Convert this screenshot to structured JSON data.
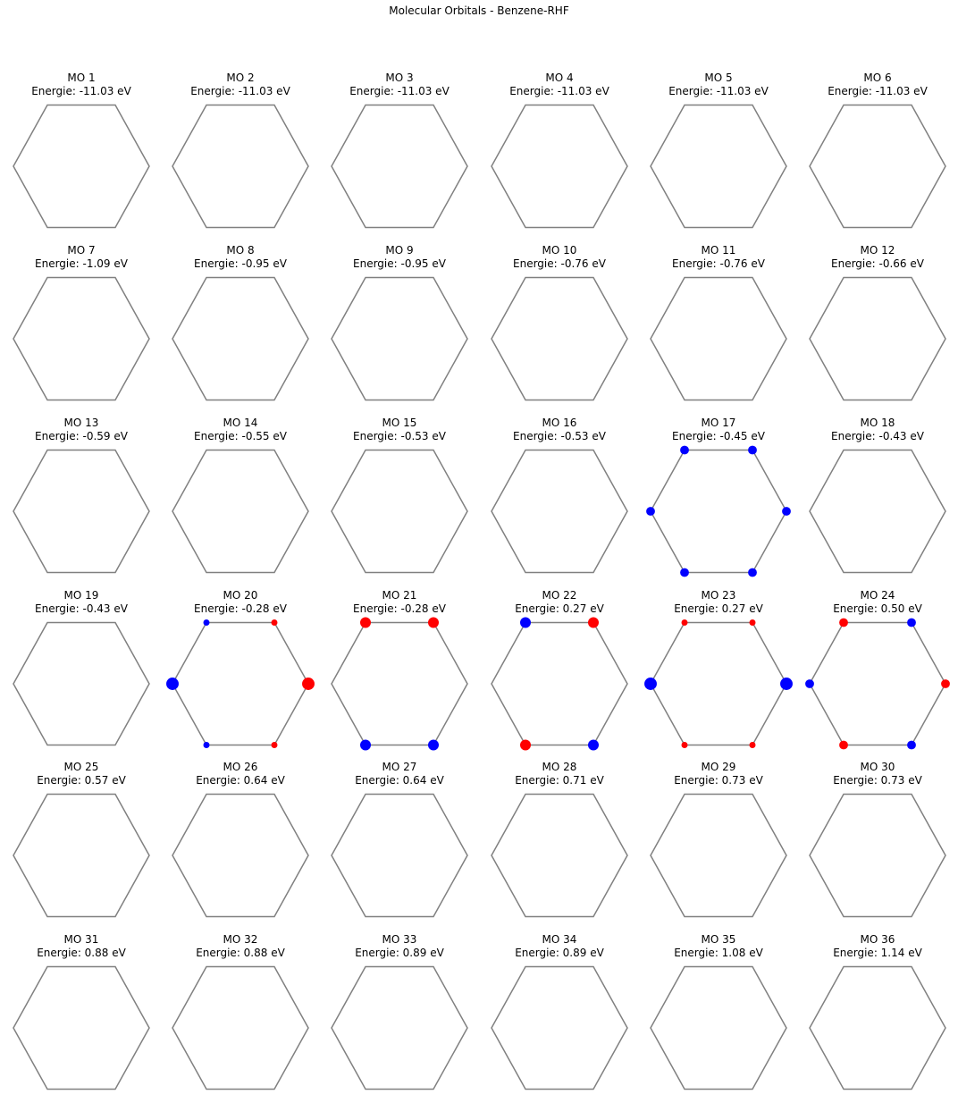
{
  "figure": {
    "title": "Molecular Orbitals - Benzene-RHF",
    "energy_prefix": "Energie: ",
    "energy_unit": " eV",
    "colors": {
      "ring": "#808080",
      "positive": "#ff0000",
      "negative": "#0000ff"
    }
  },
  "orbitals": [
    {
      "label": "MO 1",
      "energy": "-11.03"
    },
    {
      "label": "MO 2",
      "energy": "-11.03"
    },
    {
      "label": "MO 3",
      "energy": "-11.03"
    },
    {
      "label": "MO 4",
      "energy": "-11.03"
    },
    {
      "label": "MO 5",
      "energy": "-11.03"
    },
    {
      "label": "MO 6",
      "energy": "-11.03"
    },
    {
      "label": "MO 7",
      "energy": "-1.09"
    },
    {
      "label": "MO 8",
      "energy": "-0.95"
    },
    {
      "label": "MO 9",
      "energy": "-0.95"
    },
    {
      "label": "MO 10",
      "energy": "-0.76"
    },
    {
      "label": "MO 11",
      "energy": "-0.76"
    },
    {
      "label": "MO 12",
      "energy": "-0.66"
    },
    {
      "label": "MO 13",
      "energy": "-0.59"
    },
    {
      "label": "MO 14",
      "energy": "-0.55"
    },
    {
      "label": "MO 15",
      "energy": "-0.53"
    },
    {
      "label": "MO 16",
      "energy": "-0.53"
    },
    {
      "label": "MO 17",
      "energy": "-0.45",
      "coefficients": [
        -0.41,
        -0.41,
        -0.41,
        -0.41,
        -0.41,
        -0.41
      ]
    },
    {
      "label": "MO 18",
      "energy": "-0.43"
    },
    {
      "label": "MO 19",
      "energy": "-0.43"
    },
    {
      "label": "MO 20",
      "energy": "-0.28",
      "coefficients": [
        0.58,
        0.29,
        -0.29,
        -0.58,
        -0.29,
        0.29
      ]
    },
    {
      "label": "MO 21",
      "energy": "-0.28",
      "coefficients": [
        0,
        0.5,
        0.5,
        0,
        -0.5,
        -0.5
      ]
    },
    {
      "label": "MO 22",
      "energy": "0.27",
      "coefficients": [
        0,
        0.5,
        -0.5,
        0,
        0.5,
        -0.5
      ]
    },
    {
      "label": "MO 23",
      "energy": "0.27",
      "coefficients": [
        -0.58,
        0.29,
        0.29,
        -0.58,
        0.29,
        0.29
      ]
    },
    {
      "label": "MO 24",
      "energy": "0.50",
      "coefficients": [
        0.41,
        -0.41,
        0.41,
        -0.41,
        0.41,
        -0.41
      ]
    },
    {
      "label": "MO 25",
      "energy": "0.57"
    },
    {
      "label": "MO 26",
      "energy": "0.64"
    },
    {
      "label": "MO 27",
      "energy": "0.64"
    },
    {
      "label": "MO 28",
      "energy": "0.71"
    },
    {
      "label": "MO 29",
      "energy": "0.73"
    },
    {
      "label": "MO 30",
      "energy": "0.73"
    },
    {
      "label": "MO 31",
      "energy": "0.88"
    },
    {
      "label": "MO 32",
      "energy": "0.88"
    },
    {
      "label": "MO 33",
      "energy": "0.89"
    },
    {
      "label": "MO 34",
      "energy": "0.89"
    },
    {
      "label": "MO 35",
      "energy": "1.08"
    },
    {
      "label": "MO 36",
      "energy": "1.14"
    }
  ]
}
